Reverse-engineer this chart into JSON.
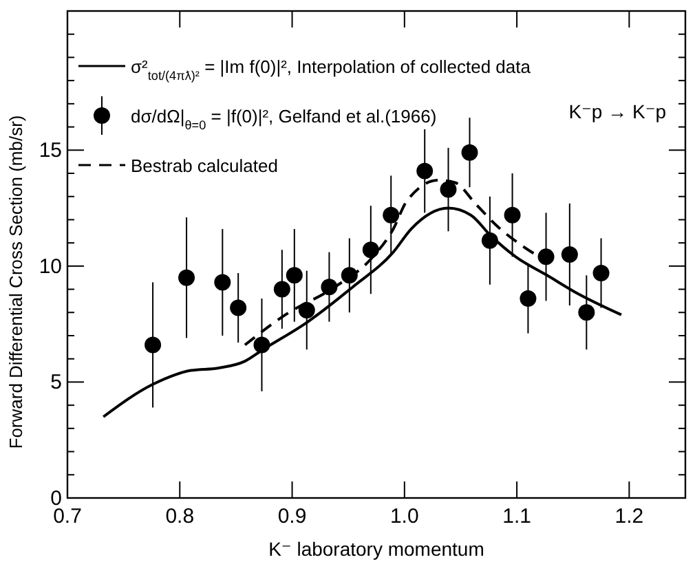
{
  "chart_data": {
    "type": "scatter",
    "xlabel": "K⁻  laboratory momentum",
    "ylabel": "Forward Differential Cross Section (mb/sr)",
    "annotations": [
      "K⁻p → K⁻p"
    ],
    "xlim": [
      0.7,
      1.25
    ],
    "xticks": [
      0.7,
      0.8,
      0.9,
      {
        "value": 1.0,
        "label": "1.0"
      },
      1.1,
      1.2
    ],
    "ylim": [
      0,
      21
    ],
    "yticks": [
      0,
      {
        "value": 1,
        "label": null
      },
      {
        "value": 2,
        "label": null
      },
      {
        "value": 3,
        "label": null
      },
      {
        "value": 4,
        "label": null
      },
      5,
      {
        "value": 6,
        "label": null
      },
      {
        "value": 7,
        "label": null
      },
      {
        "value": 8,
        "label": null
      },
      {
        "value": 9,
        "label": null
      },
      10,
      {
        "value": 11,
        "label": null
      },
      {
        "value": 12,
        "label": null
      },
      {
        "value": 13,
        "label": null
      },
      {
        "value": 14,
        "label": null
      },
      15,
      {
        "value": 16,
        "label": null
      },
      {
        "value": 17,
        "label": null
      },
      {
        "value": 18,
        "label": null
      },
      {
        "value": 19,
        "label": null
      },
      {
        "value": 20,
        "label": null
      }
    ],
    "grid": false,
    "legend": "top left",
    "series": [
      {
        "type": "line",
        "name": "σ²$_{tot/(4πƛ)²}$ = |Im f(0)|², Interpolation of collected data",
        "color": "#000000",
        "line_style": "solid",
        "marker": "none",
        "x": [
          0.732,
          0.776,
          0.81,
          0.834,
          0.858,
          0.874,
          0.914,
          0.954,
          0.99,
          1.006,
          1.039,
          1.059,
          1.077,
          1.099,
          1.127,
          1.151,
          1.193
        ],
        "values": [
          3.5,
          4.9,
          5.5,
          5.6,
          5.9,
          6.4,
          7.6,
          9.1,
          10.6,
          11.6,
          12.5,
          12.2,
          11.3,
          10.4,
          9.6,
          8.9,
          7.9
        ]
      },
      {
        "name": "dσ/dΩ|$_{θ=0}$ = |f(0)|², Gelfand et al.(1966)",
        "color": "#000000",
        "marker": "circle",
        "x": [
          0.776,
          0.806,
          0.838,
          0.852,
          0.873,
          0.891,
          0.902,
          0.913,
          0.933,
          0.951,
          0.97,
          0.988,
          1.018,
          1.039,
          1.058,
          1.076,
          1.096,
          1.11,
          1.126,
          1.147,
          1.162,
          1.175
        ],
        "values": [
          6.6,
          9.5,
          9.3,
          8.2,
          6.6,
          9.0,
          9.6,
          8.1,
          9.1,
          9.6,
          10.7,
          12.2,
          14.1,
          13.3,
          14.9,
          11.1,
          12.2,
          8.6,
          10.4,
          10.5,
          8.0,
          9.7
        ],
        "errors": [
          2.7,
          2.6,
          2.3,
          1.5,
          2.0,
          1.7,
          2.0,
          1.7,
          1.5,
          1.6,
          1.9,
          1.7,
          1.8,
          1.8,
          1.5,
          1.9,
          1.8,
          1.5,
          1.9,
          2.2,
          1.6,
          1.5
        ]
      },
      {
        "type": "line",
        "name": "Bestrab calculated",
        "color": "#000000",
        "line_style": "dashed",
        "marker": "none",
        "x": [
          0.858,
          0.894,
          0.938,
          0.97,
          0.99,
          1.002,
          1.03,
          1.045,
          1.063,
          1.083,
          1.107,
          1.127
        ],
        "values": [
          6.6,
          7.9,
          9.1,
          10.3,
          11.6,
          12.8,
          13.7,
          13.6,
          12.7,
          11.7,
          10.8,
          10.2
        ]
      }
    ]
  }
}
